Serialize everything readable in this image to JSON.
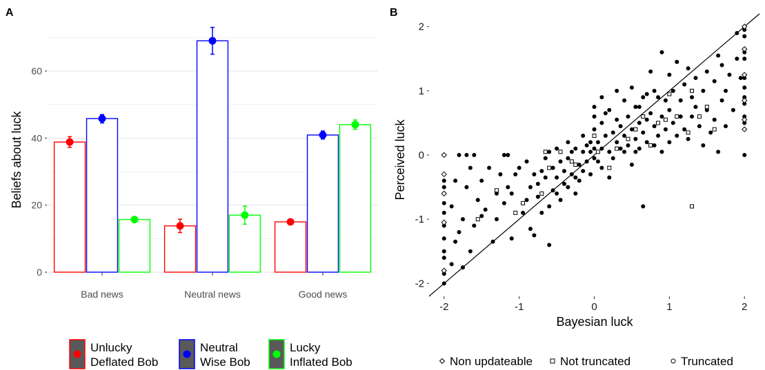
{
  "chart_data": [
    {
      "panel": "A",
      "type": "bar",
      "ylabel": "Beliefs about luck",
      "ylim": [
        0,
        75
      ],
      "yticks": [
        0,
        20,
        40,
        60
      ],
      "grid": true,
      "categories": [
        "Bad news",
        "Neutral news",
        "Good news"
      ],
      "series": [
        {
          "label_lines": [
            "Unlucky",
            "Deflated Bob"
          ],
          "color": "#ff0000",
          "values": [
            38.8,
            13.8,
            15.0
          ],
          "error_low": [
            37.2,
            11.8,
            14.4
          ],
          "error_high": [
            40.4,
            15.8,
            15.6
          ]
        },
        {
          "label_lines": [
            "Neutral",
            "Wise Bob"
          ],
          "color": "#0000ff",
          "values": [
            45.8,
            69.0,
            40.9
          ],
          "error_low": [
            44.5,
            65.0,
            39.7
          ],
          "error_high": [
            47.0,
            73.0,
            42.1
          ]
        },
        {
          "label_lines": [
            "Lucky",
            "Inflated Bob"
          ],
          "color": "#00ff00",
          "values": [
            15.7,
            17.0,
            44.0
          ],
          "error_low": [
            15.1,
            14.3,
            42.6
          ],
          "error_high": [
            16.3,
            19.7,
            45.4
          ]
        }
      ],
      "legend_position": "bottom"
    },
    {
      "panel": "B",
      "type": "scatter",
      "xlabel": "Bayesian luck",
      "ylabel": "Perceived luck",
      "xlim": [
        -2.2,
        2.2
      ],
      "ylim": [
        -2.2,
        2.2
      ],
      "xticks": [
        -2,
        -1,
        0,
        1,
        2
      ],
      "yticks": [
        -2,
        -1,
        0,
        1,
        2
      ],
      "grid": false,
      "reference_line": "y = x",
      "legend_position": "bottom",
      "legend": [
        {
          "label": "Non updateable",
          "marker": "diamond"
        },
        {
          "label": "Not truncated",
          "marker": "square"
        },
        {
          "label": "Truncated",
          "marker": "circle"
        }
      ],
      "series": [
        {
          "name": "Truncated",
          "marker": "filled-circle",
          "points": [
            [
              -2,
              -2
            ],
            [
              -2,
              -1.85
            ],
            [
              -2,
              -1.6
            ],
            [
              -2,
              -1.5
            ],
            [
              -2,
              -1.3
            ],
            [
              -2,
              -1.1
            ],
            [
              -2,
              -0.9
            ],
            [
              -2,
              -0.75
            ],
            [
              -2,
              -0.6
            ],
            [
              -2,
              -0.5
            ],
            [
              -2,
              -0.4
            ],
            [
              -1.9,
              -1.7
            ],
            [
              -1.85,
              -1.35
            ],
            [
              -1.8,
              -1.2
            ],
            [
              -1.9,
              -0.8
            ],
            [
              -1.85,
              -0.4
            ],
            [
              -1.75,
              -1.0
            ],
            [
              -1.7,
              -0.5
            ],
            [
              -1.65,
              -0.2
            ],
            [
              -1.75,
              -1.75
            ],
            [
              -1.65,
              -1.5
            ],
            [
              -1.6,
              -1.1
            ],
            [
              -1.55,
              -0.7
            ],
            [
              -1.5,
              -0.4
            ],
            [
              -1.45,
              -0.85
            ],
            [
              -1.4,
              -0.2
            ],
            [
              -1.8,
              0
            ],
            [
              -1.7,
              0
            ],
            [
              -1.6,
              0
            ],
            [
              -1.35,
              -1.35
            ],
            [
              -1.3,
              -1.0
            ],
            [
              -1.3,
              -0.6
            ],
            [
              -1.25,
              -0.3
            ],
            [
              -1.2,
              -0.75
            ],
            [
              -1.15,
              -0.5
            ],
            [
              -1.1,
              -0.6
            ],
            [
              -1.05,
              -0.3
            ],
            [
              -1.0,
              -0.2
            ],
            [
              -0.95,
              -0.9
            ],
            [
              -0.9,
              -0.7
            ],
            [
              -0.85,
              -0.5
            ],
            [
              -0.8,
              -0.3
            ],
            [
              -0.9,
              -0.1
            ],
            [
              -0.85,
              -1.15
            ],
            [
              -0.8,
              -1.25
            ],
            [
              -0.75,
              -0.65
            ],
            [
              -0.7,
              -0.9
            ],
            [
              -0.7,
              -0.25
            ],
            [
              -0.65,
              -0.05
            ],
            [
              -0.6,
              -1.4
            ],
            [
              -0.6,
              -0.8
            ],
            [
              -0.55,
              -0.55
            ],
            [
              -0.55,
              -0.2
            ],
            [
              -0.5,
              -0.6
            ],
            [
              -0.5,
              -0.35
            ],
            [
              -0.45,
              -0.7
            ],
            [
              -0.45,
              -0.1
            ],
            [
              -0.4,
              -0.45
            ],
            [
              -0.4,
              -0.25
            ],
            [
              -0.35,
              -0.5
            ],
            [
              -0.35,
              -0.05
            ],
            [
              -0.3,
              -0.3
            ],
            [
              -0.3,
              0.05
            ],
            [
              -0.25,
              -0.35
            ],
            [
              -0.25,
              0.1
            ],
            [
              -0.2,
              -0.4
            ],
            [
              -0.2,
              -0.15
            ],
            [
              -0.15,
              -0.25
            ],
            [
              -0.15,
              0.05
            ],
            [
              -0.1,
              -0.1
            ],
            [
              -0.1,
              0.15
            ],
            [
              -0.05,
              -0.3
            ],
            [
              -0.05,
              0.05
            ],
            [
              0,
              -0.05
            ],
            [
              0,
              0.4
            ],
            [
              0,
              0.6
            ],
            [
              0,
              0.75
            ],
            [
              0,
              0.1
            ],
            [
              -0.65,
              -0.35
            ],
            [
              -0.75,
              -0.45
            ],
            [
              -0.6,
              0.05
            ],
            [
              -0.5,
              0.1
            ],
            [
              0.05,
              -0.1
            ],
            [
              0.05,
              0.2
            ],
            [
              0.1,
              0.1
            ],
            [
              0.1,
              -0.2
            ],
            [
              0.1,
              0.5
            ],
            [
              0.15,
              0.3
            ],
            [
              0.2,
              0.05
            ],
            [
              0.2,
              0.7
            ],
            [
              0.25,
              -0.05
            ],
            [
              0.25,
              0.35
            ],
            [
              0.3,
              0.2
            ],
            [
              0.3,
              0.55
            ],
            [
              0.35,
              0.1
            ],
            [
              0.35,
              0.45
            ],
            [
              0.4,
              0.3
            ],
            [
              0.4,
              0.85
            ],
            [
              0.45,
              0.15
            ],
            [
              0.45,
              0.6
            ],
            [
              0.5,
              0.4
            ],
            [
              0.5,
              -0.15
            ],
            [
              0.55,
              0.25
            ],
            [
              0.55,
              0.75
            ],
            [
              0.6,
              0.5
            ],
            [
              0.6,
              0.1
            ],
            [
              0.65,
              0.9
            ],
            [
              0.65,
              0.35
            ],
            [
              0.7,
              0.55
            ],
            [
              0.7,
              0.2
            ],
            [
              0.75,
              1.3
            ],
            [
              0.75,
              0.65
            ],
            [
              0.8,
              0.45
            ],
            [
              0.8,
              0.15
            ],
            [
              0.85,
              0.9
            ],
            [
              0.85,
              0.3
            ],
            [
              0.9,
              0.6
            ],
            [
              0.9,
              0.05
            ],
            [
              0.95,
              0.85
            ],
            [
              0.95,
              0.4
            ],
            [
              1.0,
              0.7
            ],
            [
              1.0,
              0.2
            ],
            [
              1.05,
              1.0
            ],
            [
              1.05,
              0.5
            ],
            [
              1.1,
              0.3
            ],
            [
              1.15,
              0.85
            ],
            [
              1.15,
              0.6
            ],
            [
              1.2,
              1.1
            ],
            [
              1.2,
              0.4
            ],
            [
              1.25,
              0.25
            ],
            [
              1.3,
              0.9
            ],
            [
              1.3,
              0.6
            ],
            [
              1.35,
              1.2
            ],
            [
              1.4,
              0.45
            ],
            [
              1.45,
              1.0
            ],
            [
              1.45,
              0.15
            ],
            [
              1.5,
              0.7
            ],
            [
              1.5,
              1.3
            ],
            [
              1.55,
              0.35
            ],
            [
              1.6,
              1.15
            ],
            [
              1.6,
              0.55
            ],
            [
              1.65,
              1.55
            ],
            [
              1.65,
              0.05
            ],
            [
              1.7,
              0.85
            ],
            [
              1.7,
              1.4
            ],
            [
              1.75,
              0.45
            ],
            [
              1.75,
              1.0
            ],
            [
              1.8,
              1.25
            ],
            [
              1.85,
              0.7
            ],
            [
              1.9,
              1.5
            ],
            [
              1.9,
              1.9
            ],
            [
              1.95,
              1.2
            ],
            [
              2,
              1.95
            ],
            [
              2,
              1.85
            ],
            [
              2,
              1.6
            ],
            [
              2,
              1.5
            ],
            [
              2,
              1.2
            ],
            [
              2,
              1.05
            ],
            [
              2,
              0.9
            ],
            [
              2,
              0.8
            ],
            [
              2,
              0.6
            ],
            [
              2,
              0.5
            ],
            [
              2,
              0
            ],
            [
              0.3,
              1.0
            ],
            [
              0.1,
              0.9
            ],
            [
              0.65,
              -0.8
            ],
            [
              0.9,
              1.6
            ],
            [
              1.1,
              1.45
            ],
            [
              1.0,
              1.25
            ],
            [
              0.5,
              1.05
            ],
            [
              0.2,
              -0.35
            ],
            [
              -1.2,
              0
            ],
            [
              -1.15,
              0
            ],
            [
              -1.5,
              -0.95
            ],
            [
              -1.1,
              -1.3
            ],
            [
              -0.35,
              0.2
            ],
            [
              -0.15,
              0.3
            ],
            [
              0.8,
              1.0
            ],
            [
              0.4,
              0.05
            ],
            [
              1.35,
              0.75
            ],
            [
              1.25,
              1.35
            ],
            [
              0.15,
              0.65
            ],
            [
              0.6,
              0.75
            ],
            [
              0.7,
              0.95
            ],
            [
              -0.05,
              0.2
            ],
            [
              0.55,
              0.05
            ],
            [
              -0.25,
              -0.6
            ]
          ]
        },
        {
          "name": "Not truncated",
          "marker": "square",
          "points": [
            [
              -0.7,
              -0.6
            ],
            [
              -0.65,
              0.05
            ],
            [
              -1.05,
              -0.9
            ],
            [
              -0.95,
              -0.75
            ],
            [
              -1.55,
              -1.0
            ],
            [
              -0.25,
              -0.15
            ],
            [
              0,
              0.3
            ],
            [
              0.05,
              0.05
            ],
            [
              0.2,
              -0.2
            ],
            [
              0.3,
              0.1
            ],
            [
              0.45,
              0.25
            ],
            [
              0.55,
              0.4
            ],
            [
              0.65,
              0.6
            ],
            [
              0.75,
              0.15
            ],
            [
              0.85,
              0.5
            ],
            [
              0.95,
              0.55
            ],
            [
              1.0,
              0.95
            ],
            [
              1.1,
              0.6
            ],
            [
              1.3,
              1.0
            ],
            [
              1.4,
              0.6
            ],
            [
              1.5,
              0.75
            ],
            [
              1.6,
              0.4
            ],
            [
              1.3,
              -0.8
            ],
            [
              -0.6,
              -0.2
            ],
            [
              -0.3,
              -0.1
            ],
            [
              -1.3,
              -0.55
            ],
            [
              -0.45,
              0.05
            ],
            [
              1.25,
              0.35
            ]
          ]
        },
        {
          "name": "Non updateable",
          "marker": "diamond",
          "points": [
            [
              -2,
              0
            ],
            [
              -2,
              -0.3
            ],
            [
              -2,
              -0.6
            ],
            [
              -2,
              -1.05
            ],
            [
              -2,
              -1.8
            ],
            [
              2,
              0.4
            ],
            [
              2,
              0.55
            ],
            [
              2,
              0.85
            ],
            [
              2,
              1.25
            ],
            [
              2,
              1.65
            ],
            [
              2,
              2.0
            ]
          ]
        }
      ]
    }
  ]
}
